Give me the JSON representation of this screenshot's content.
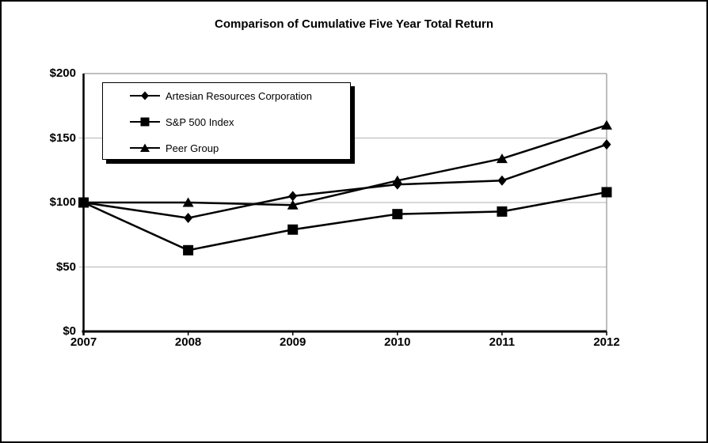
{
  "chart_data": {
    "type": "line",
    "title": "Comparison of Cumulative Five Year Total Return",
    "categories": [
      "2007",
      "2008",
      "2009",
      "2010",
      "2011",
      "2012"
    ],
    "series": [
      {
        "name": "Artesian Resources Corporation",
        "marker": "diamond",
        "color": "#000000",
        "values": [
          100,
          88,
          105,
          114,
          117,
          145
        ]
      },
      {
        "name": "S&P 500 Index",
        "marker": "square",
        "color": "#000000",
        "values": [
          100,
          63,
          79,
          91,
          93,
          108
        ]
      },
      {
        "name": "Peer Group",
        "marker": "triangle",
        "color": "#000000",
        "values": [
          100,
          100,
          98,
          117,
          134,
          160
        ]
      }
    ],
    "xlabel": "",
    "ylabel": "",
    "ylim": [
      0,
      200
    ],
    "y_ticks": [
      0,
      50,
      100,
      150,
      200
    ],
    "y_tick_labels": [
      "$0",
      "$50",
      "$100",
      "$150",
      "$200"
    ],
    "gridline_values": [
      50,
      100,
      150
    ],
    "grid": "horizontal",
    "legend_position": "top-left-inside",
    "colors": {
      "series": "#000000",
      "gridline": "#c0c0c0",
      "frame": "#9a9a9a",
      "axis": "#000000",
      "background": "#ffffff"
    }
  }
}
